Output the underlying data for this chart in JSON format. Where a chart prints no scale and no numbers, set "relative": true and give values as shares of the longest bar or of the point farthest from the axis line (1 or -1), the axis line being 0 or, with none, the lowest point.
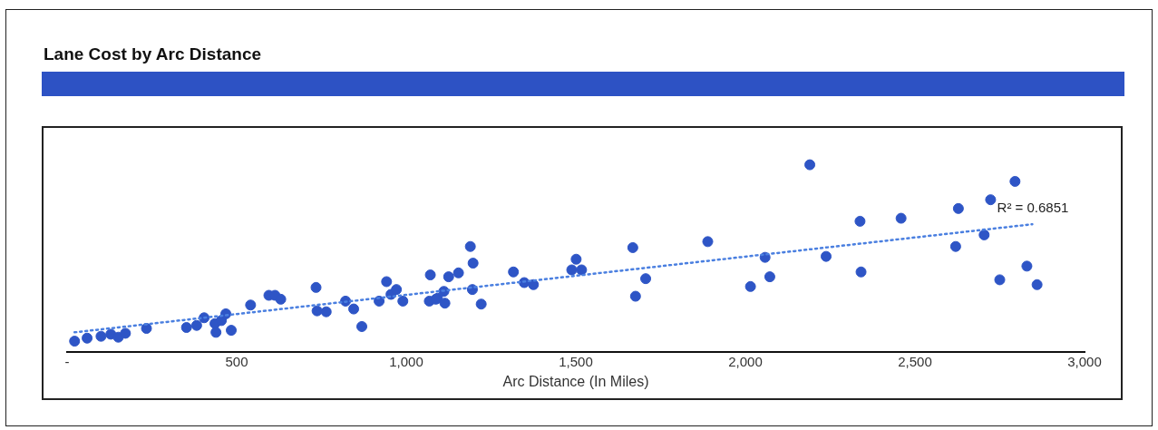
{
  "chart_data": {
    "type": "scatter",
    "title": "Lane Cost by Arc Distance",
    "xlabel": "Arc Distance (In Miles)",
    "relative": true,
    "xlim": [
      0,
      3000
    ],
    "xticks": [
      {
        "value": 0,
        "label": "-"
      },
      500,
      {
        "value": 1000,
        "label": "1,000"
      },
      {
        "value": 1500,
        "label": "1,500"
      },
      {
        "value": 2000,
        "label": "2,000"
      },
      {
        "value": 2500,
        "label": "2,500"
      },
      {
        "value": 3000,
        "label": "3,000"
      }
    ],
    "tick_labels": "x",
    "grid": false,
    "legend": false,
    "marker": "circle",
    "annotations": [
      {
        "text": "R² = 0.6851",
        "x": 2846,
        "y": 0.682
      }
    ],
    "series": [
      {
        "color": "#2e55c6",
        "x": [
          22,
          59,
          100,
          129,
          151,
          172,
          234,
          352,
          382,
          404,
          436,
          439,
          455,
          468,
          484,
          541,
          595,
          613,
          630,
          734,
          737,
          764,
          821,
          845,
          869,
          920,
          942,
          955,
          971,
          990,
          1071,
          1068,
          1092,
          1087,
          1111,
          1114,
          1125,
          1154,
          1189,
          1197,
          1195,
          1221,
          1316,
          1348,
          1375,
          1488,
          1501,
          1517,
          1668,
          1676,
          1706,
          1889,
          2015,
          2058,
          2072,
          2190,
          2238,
          2338,
          2341,
          2459,
          2620,
          2628,
          2704,
          2723,
          2750,
          2795,
          2830,
          2860
        ],
        "values": [
          0.057,
          0.073,
          0.083,
          0.094,
          0.078,
          0.099,
          0.125,
          0.13,
          0.141,
          0.182,
          0.151,
          0.104,
          0.167,
          0.203,
          0.115,
          0.25,
          0.302,
          0.302,
          0.281,
          0.344,
          0.219,
          0.214,
          0.271,
          0.229,
          0.135,
          0.271,
          0.375,
          0.307,
          0.333,
          0.271,
          0.411,
          0.271,
          0.286,
          0.281,
          0.323,
          0.26,
          0.401,
          0.422,
          0.563,
          0.474,
          0.333,
          0.255,
          0.427,
          0.37,
          0.359,
          0.438,
          0.495,
          0.438,
          0.557,
          0.297,
          0.391,
          0.589,
          0.349,
          0.505,
          0.401,
          1,
          0.51,
          0.698,
          0.427,
          0.714,
          0.563,
          0.766,
          0.625,
          0.813,
          0.385,
          0.911,
          0.458,
          0.359
        ]
      },
      {
        "type": "line",
        "color": "#4a7fe0",
        "marker": "none",
        "line_style": "dotted",
        "x": [
          22,
          2846
        ],
        "values": [
          0.104,
          0.682
        ]
      }
    ]
  }
}
